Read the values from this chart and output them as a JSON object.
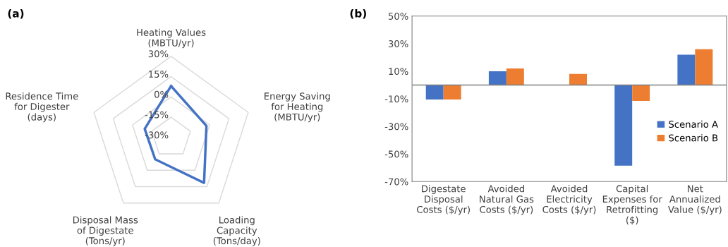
{
  "chart_data": [
    {
      "type": "radar",
      "title": "(a)",
      "categories": [
        "Heating Values\n(MBTU/yr)",
        "Energy Saving\nfor Heating\n(MBTU/yr)",
        "Loading\nCapacity\n(Tons/day)",
        "Disposal Mass\nof Digestate\n(Tons/yr)",
        "Residence Time\nfor Digester\n(days)"
      ],
      "series": [
        {
          "color": "#4472c4",
          "values": [
            8,
            -2.5,
            11.5,
            -10,
            -9.5
          ]
        }
      ],
      "ylim": [
        -30,
        30
      ],
      "yticks": [
        {
          "value": -30,
          "label": "-30%"
        },
        {
          "value": -15,
          "label": "-15%"
        },
        {
          "value": 0,
          "label": "0%"
        },
        {
          "value": 15,
          "label": "15%"
        },
        {
          "value": 30,
          "label": "30%"
        }
      ],
      "grid": true
    },
    {
      "type": "bar",
      "title": "(b)",
      "categories": [
        "Digestate\nDisposal\nCosts ($/yr)",
        "Avoided\nNatural Gas\nCosts ($/yr)",
        "Avoided\nElectricity\nCosts ($/yr)",
        "Capital\nExpenses for\nRetrofitting\n($)",
        "Net\nAnnualized\nValue ($/yr)"
      ],
      "series": [
        {
          "name": "Scenario A",
          "color": "#4472c4",
          "values": [
            -10.5,
            10,
            0,
            -58.5,
            22
          ]
        },
        {
          "name": "Scenario B",
          "color": "#ed7d31",
          "values": [
            -10.5,
            12,
            8,
            -11.5,
            26
          ]
        }
      ],
      "ylim": [
        -70,
        50
      ],
      "yticks": [
        {
          "value": -70,
          "label": "-70%"
        },
        {
          "value": -50,
          "label": "-50%"
        },
        {
          "value": -30,
          "label": "-30%"
        },
        {
          "value": -10,
          "label": "-10%"
        },
        {
          "value": 10,
          "label": "10%"
        },
        {
          "value": 30,
          "label": "30%"
        },
        {
          "value": 50,
          "label": "50%"
        }
      ],
      "legend": "right"
    }
  ]
}
